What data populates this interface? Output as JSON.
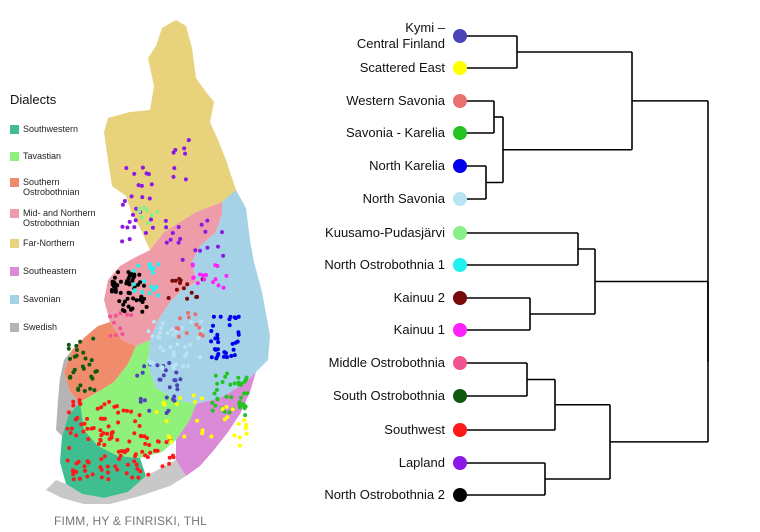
{
  "legend": {
    "title": "Dialects",
    "items": [
      {
        "label": "Southwestern",
        "color": "#3fbf8f"
      },
      {
        "label": "Tavastian",
        "color": "#8ff07a"
      },
      {
        "label": "Southern Ostrobothnian",
        "color": "#f08c6c"
      },
      {
        "label": "Mid- and Northern Ostrobothnian",
        "color": "#ee9ca8"
      },
      {
        "label": "Far-Northern",
        "color": "#e8d27c"
      },
      {
        "label": "Southeastern",
        "color": "#da8ad6"
      },
      {
        "label": "Savonian",
        "color": "#a6d2e8"
      },
      {
        "label": "Swedish",
        "color": "#b4b4b4"
      }
    ]
  },
  "credit": "FIMM, HY & FINRISKI, THL",
  "tree": {
    "leaves": [
      {
        "label": "Kymi –\nCentral Finland",
        "color": "#4b44b8"
      },
      {
        "label": "Scattered East",
        "color": "#ffff00"
      },
      {
        "label": "Western Savonia",
        "color": "#e87070"
      },
      {
        "label": "Savonia - Karelia",
        "color": "#22c422"
      },
      {
        "label": "North Karelia",
        "color": "#0000ee"
      },
      {
        "label": "North Savonia",
        "color": "#b8e4f4"
      },
      {
        "label": "Kuusamo-Pudasjärvi",
        "color": "#88f088"
      },
      {
        "label": "North Ostrobothnia 1",
        "color": "#22f0f0"
      },
      {
        "label": "Kainuu 2",
        "color": "#7a0a0a"
      },
      {
        "label": "Kainuu 1",
        "color": "#ff22ff"
      },
      {
        "label": "Middle Ostrobothnia",
        "color": "#f05590"
      },
      {
        "label": "South Ostrobothnia",
        "color": "#0f5a0f"
      },
      {
        "label": "Southwest",
        "color": "#ff1a1a"
      },
      {
        "label": "Lapland",
        "color": "#8c18e6"
      },
      {
        "label": "North Ostrobothnia 2",
        "color": "#000000"
      }
    ]
  }
}
